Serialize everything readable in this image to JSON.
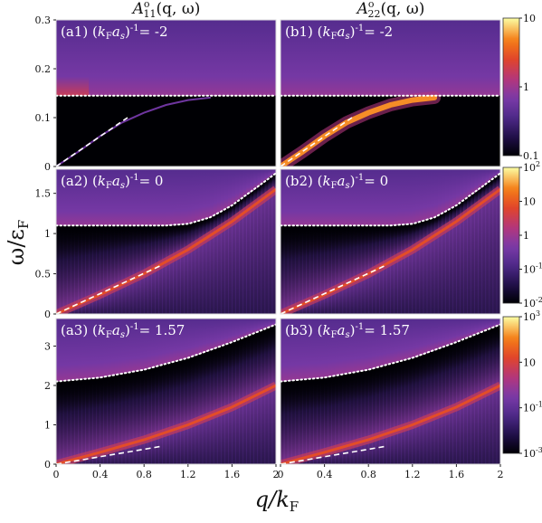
{
  "chart_data": {
    "type": "heatmap",
    "colormap": "inferno-like (black → purple → red → orange → yellow)",
    "scale": "log",
    "xlabel": "q/k",
    "xlabel_sub": "F",
    "ylabel": "ω/ε",
    "ylabel_sub": "F",
    "x_range": [
      0,
      2
    ],
    "x_ticks": [
      "0",
      "0.4",
      "0.8",
      "1.2",
      "1.6",
      "2"
    ],
    "column_titles": [
      {
        "base": "A",
        "sup": "o",
        "sub": "11",
        "args": "(q, ω)"
      },
      {
        "base": "A",
        "sup": "o",
        "sub": "22",
        "args": "(q, ω)"
      }
    ],
    "rows": [
      {
        "inv_kfa": "-2",
        "y_range": [
          0,
          0.3
        ],
        "y_ticks": [
          {
            "label": "0",
            "value": 0
          },
          {
            "label": "0.1",
            "value": 0.1
          },
          {
            "label": "0.2",
            "value": 0.2
          },
          {
            "label": "0.3",
            "value": 0.3
          }
        ],
        "continuum_threshold": 0.145,
        "phonon_dispersion": [
          [
            0,
            0
          ],
          [
            0.2,
            0.03
          ],
          [
            0.4,
            0.062
          ],
          [
            0.6,
            0.09
          ],
          [
            0.8,
            0.11
          ],
          [
            1.0,
            0.126
          ],
          [
            1.2,
            0.136
          ],
          [
            1.4,
            0.141
          ]
        ],
        "sound_line": [
          [
            0,
            0
          ],
          [
            0.65,
            0.1
          ]
        ],
        "colorbar": {
          "ticks": [
            {
              "label": "10",
              "exp": "",
              "value": 10
            },
            {
              "label": "1",
              "exp": "",
              "value": 1
            },
            {
              "label": "0.1",
              "exp": "",
              "value": 0.1
            }
          ]
        }
      },
      {
        "inv_kfa": "0",
        "y_range": [
          0,
          1.8
        ],
        "y_ticks": [
          {
            "label": "0",
            "value": 0
          },
          {
            "label": "0.5",
            "value": 0.5
          },
          {
            "label": "1",
            "value": 1
          },
          {
            "label": "1.5",
            "value": 1.5
          }
        ],
        "continuum_threshold": [
          [
            0,
            1.1
          ],
          [
            1.0,
            1.1
          ],
          [
            1.2,
            1.12
          ],
          [
            1.4,
            1.2
          ],
          [
            1.6,
            1.35
          ],
          [
            1.8,
            1.55
          ],
          [
            2.0,
            1.75
          ]
        ],
        "phonon_dispersion": [
          [
            0,
            0
          ],
          [
            0.4,
            0.24
          ],
          [
            0.8,
            0.5
          ],
          [
            1.2,
            0.8
          ],
          [
            1.6,
            1.15
          ],
          [
            2.0,
            1.55
          ]
        ],
        "sound_line": [
          [
            0,
            0
          ],
          [
            0.95,
            0.6
          ]
        ],
        "colorbar": {
          "ticks": [
            {
              "label": "10",
              "exp": "2",
              "value": 100
            },
            {
              "label": "10",
              "exp": "",
              "value": 10
            },
            {
              "label": "1",
              "exp": "",
              "value": 1
            },
            {
              "label": "10",
              "exp": "-1",
              "value": 0.1
            },
            {
              "label": "10",
              "exp": "-2",
              "value": 0.01
            }
          ]
        }
      },
      {
        "inv_kfa": "1.57",
        "y_range": [
          0,
          3.7
        ],
        "y_ticks": [
          {
            "label": "0",
            "value": 0
          },
          {
            "label": "1",
            "value": 1
          },
          {
            "label": "2",
            "value": 2
          },
          {
            "label": "3",
            "value": 3
          }
        ],
        "continuum_threshold": [
          [
            0,
            2.1
          ],
          [
            0.4,
            2.2
          ],
          [
            0.8,
            2.4
          ],
          [
            1.2,
            2.7
          ],
          [
            1.6,
            3.1
          ],
          [
            2.0,
            3.55
          ]
        ],
        "phonon_dispersion": [
          [
            0,
            0
          ],
          [
            0.4,
            0.3
          ],
          [
            0.8,
            0.62
          ],
          [
            1.2,
            1.0
          ],
          [
            1.6,
            1.45
          ],
          [
            2.0,
            2.0
          ]
        ],
        "sound_line": [
          [
            0,
            0
          ],
          [
            0.95,
            0.45
          ]
        ],
        "colorbar": {
          "ticks": [
            {
              "label": "10",
              "exp": "3",
              "value": 1000
            },
            {
              "label": "10",
              "exp": "",
              "value": 10
            },
            {
              "label": "10",
              "exp": "-1",
              "value": 0.1
            },
            {
              "label": "10",
              "exp": "-3",
              "value": 0.001
            }
          ]
        }
      }
    ],
    "panels": [
      {
        "label": "(a1)",
        "row": 0,
        "col": 0
      },
      {
        "label": "(b1)",
        "row": 0,
        "col": 1
      },
      {
        "label": "(a2)",
        "row": 1,
        "col": 0
      },
      {
        "label": "(b2)",
        "row": 1,
        "col": 1
      },
      {
        "label": "(a3)",
        "row": 2,
        "col": 0
      },
      {
        "label": "(b3)",
        "row": 2,
        "col": 1
      }
    ]
  }
}
